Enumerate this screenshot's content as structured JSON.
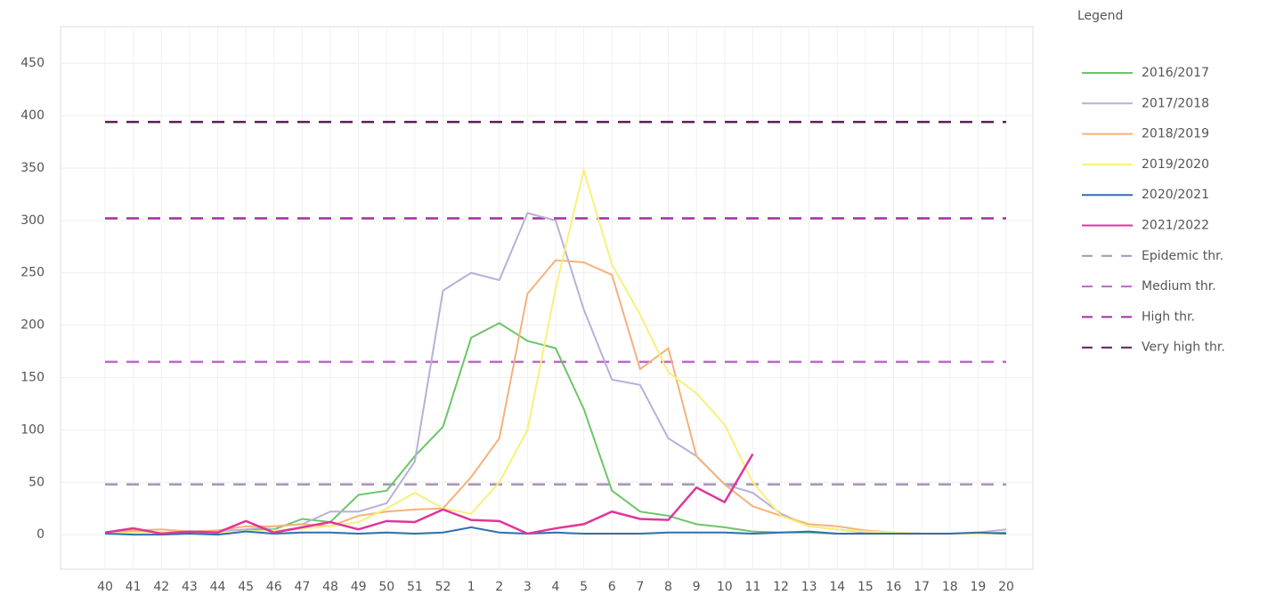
{
  "chart_data": {
    "type": "line",
    "legend_title": "Legend",
    "categories": [
      "40",
      "41",
      "42",
      "43",
      "44",
      "45",
      "46",
      "47",
      "48",
      "49",
      "50",
      "51",
      "52",
      "1",
      "2",
      "3",
      "4",
      "5",
      "6",
      "7",
      "8",
      "9",
      "10",
      "11",
      "12",
      "13",
      "14",
      "15",
      "16",
      "17",
      "18",
      "19",
      "20"
    ],
    "ylim": [
      -33,
      485
    ],
    "yticks": [
      0,
      50,
      100,
      150,
      200,
      250,
      300,
      350,
      400,
      450
    ],
    "grid": true,
    "series": [
      {
        "name": "2016/2017",
        "color": "#6cc56a",
        "values": [
          2,
          3,
          2,
          3,
          2,
          5,
          5,
          15,
          12,
          38,
          42,
          75,
          103,
          188,
          202,
          185,
          178,
          120,
          42,
          22,
          18,
          10,
          7,
          3,
          2,
          2,
          1,
          1,
          1,
          1,
          1,
          1,
          2
        ]
      },
      {
        "name": "2017/2018",
        "color": "#b8b0d8",
        "values": [
          2,
          3,
          2,
          3,
          3,
          5,
          8,
          10,
          22,
          22,
          30,
          70,
          233,
          250,
          243,
          307,
          300,
          215,
          148,
          143,
          92,
          75,
          48,
          40,
          20,
          8,
          5,
          2,
          1,
          1,
          1,
          2,
          5
        ]
      },
      {
        "name": "2018/2019",
        "color": "#f5b27a",
        "values": [
          2,
          4,
          5,
          3,
          4,
          8,
          8,
          10,
          8,
          18,
          22,
          24,
          25,
          55,
          92,
          230,
          262,
          260,
          248,
          158,
          178,
          75,
          48,
          27,
          18,
          10,
          8,
          4,
          2,
          1,
          1,
          1,
          1
        ]
      },
      {
        "name": "2019/2020",
        "color": "#f8f07a",
        "values": [
          1,
          2,
          2,
          2,
          2,
          3,
          4,
          6,
          8,
          12,
          25,
          40,
          25,
          20,
          50,
          100,
          235,
          348,
          258,
          210,
          155,
          135,
          105,
          50,
          18,
          8,
          5,
          3,
          2,
          1,
          1,
          1,
          1
        ]
      },
      {
        "name": "2020/2021",
        "color": "#2f6fb0",
        "values": [
          1,
          0,
          0,
          1,
          0,
          3,
          1,
          2,
          2,
          1,
          2,
          1,
          2,
          7,
          2,
          1,
          2,
          1,
          1,
          1,
          2,
          2,
          2,
          1,
          2,
          3,
          1,
          1,
          1,
          1,
          1,
          2,
          1
        ]
      },
      {
        "name": "2021/2022",
        "color": "#e0359a",
        "values": [
          2,
          6,
          1,
          3,
          2,
          13,
          2,
          7,
          12,
          5,
          13,
          12,
          24,
          14,
          13,
          1,
          6,
          10,
          22,
          15,
          14,
          45,
          31,
          77,
          null,
          null,
          null,
          null,
          null,
          null,
          null,
          null,
          null
        ]
      }
    ],
    "thresholds": [
      {
        "name": "Epidemic thr.",
        "color": "#a890b8",
        "value": 48
      },
      {
        "name": "Medium thr.",
        "color": "#b86ac4",
        "value": 165
      },
      {
        "name": "High thr.",
        "color": "#a0309f",
        "value": 302
      },
      {
        "name": "Very high thr.",
        "color": "#5a1f55",
        "value": 394
      }
    ]
  }
}
